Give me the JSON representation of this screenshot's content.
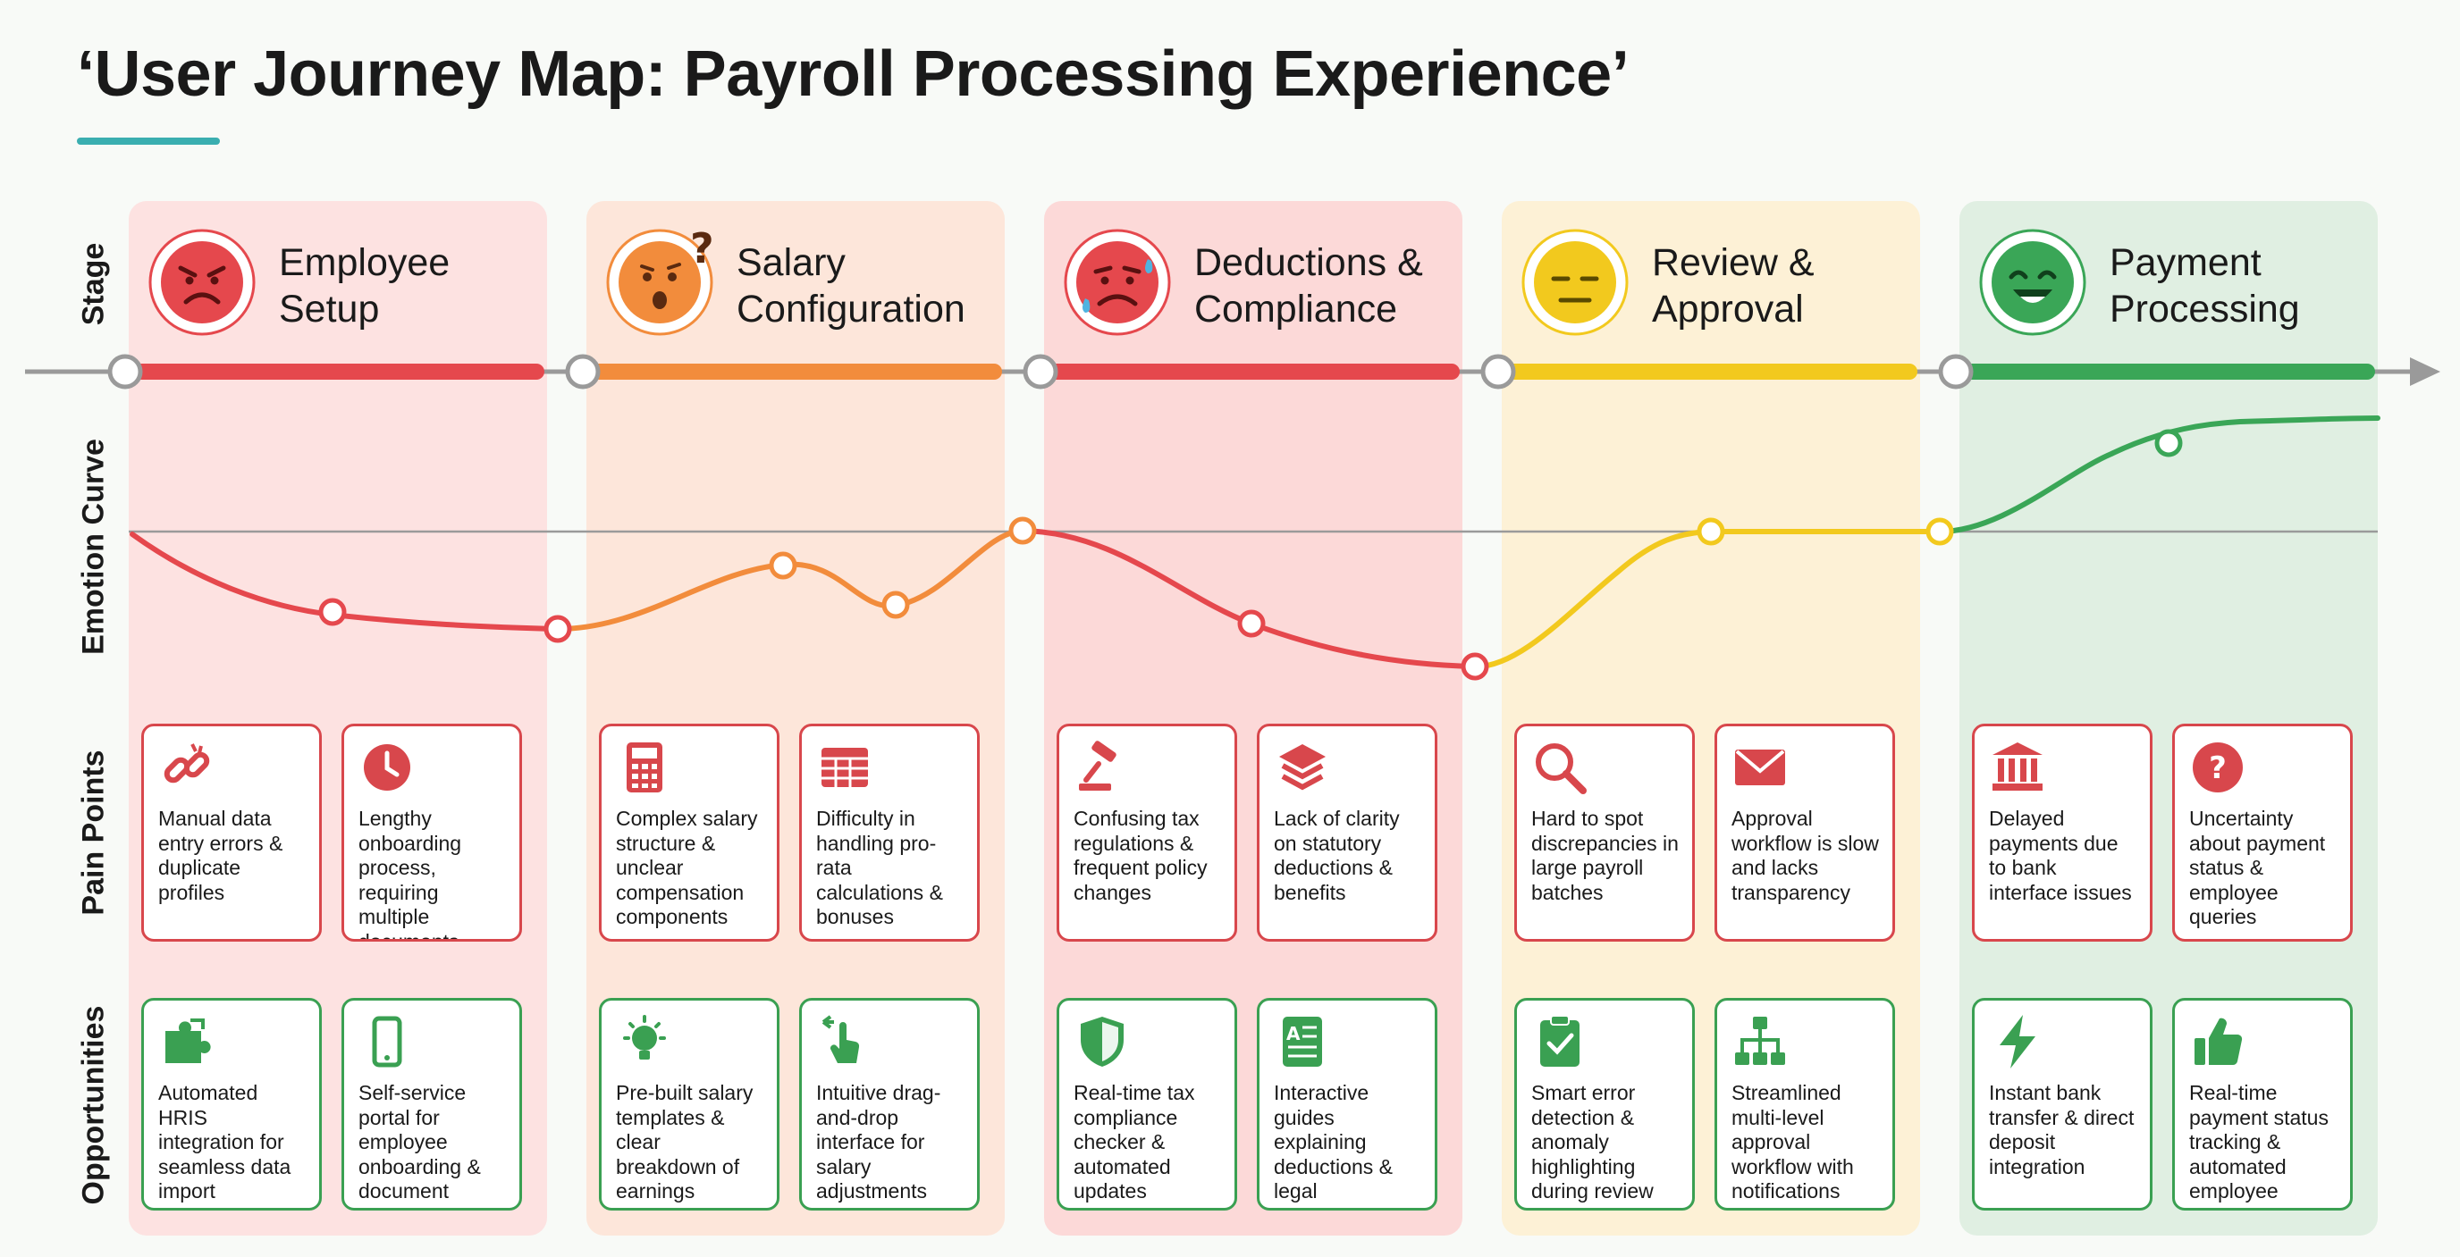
{
  "title": "‘User Journey Map: Payroll Processing Experience’",
  "row_labels": {
    "stage": "Stage",
    "emotion": "Emotion Curve",
    "pain": "Pain Points",
    "opportunities": "Opportunities"
  },
  "colors": {
    "red": "#e5484d",
    "orange": "#f28c3c",
    "yellow": "#f2c91e",
    "green": "#3aa657",
    "teal": "#3aaeb0"
  },
  "stages": [
    {
      "name_line1": "Employee",
      "name_line2": "Setup",
      "emotion": "angry",
      "color": "#e5484d",
      "bg": "#fde2e1",
      "pain_points": [
        {
          "icon": "broken-link-icon",
          "text": "Manual data entry errors & duplicate profiles"
        },
        {
          "icon": "clock-icon",
          "text": "Lengthy onboarding process, requiring multiple documents"
        }
      ],
      "opportunities": [
        {
          "icon": "puzzle-icon",
          "text": "Automated HRIS integration for seamless data import"
        },
        {
          "icon": "mobile-phone-icon",
          "text": "Self-service portal for employee onboarding & document upload"
        }
      ]
    },
    {
      "name_line1": "Salary",
      "name_line2": "Configuration",
      "emotion": "confused",
      "color": "#f28c3c",
      "bg": "#fde6da",
      "pain_points": [
        {
          "icon": "calculator-icon",
          "text": "Complex salary structure & unclear compensation components"
        },
        {
          "icon": "spreadsheet-icon",
          "text": "Difficulty in handling pro-rata calculations & bonuses"
        }
      ],
      "opportunities": [
        {
          "icon": "lightbulb-icon",
          "text": "Pre-built salary templates & clear breakdown of earnings"
        },
        {
          "icon": "drag-hand-icon",
          "text": "Intuitive drag-and-drop interface for salary adjustments"
        }
      ]
    },
    {
      "name_line1": "Deductions &",
      "name_line2": "Compliance",
      "emotion": "anxious",
      "color": "#e5484d",
      "bg": "#fcd9d8",
      "pain_points": [
        {
          "icon": "gavel-icon",
          "text": "Confusing tax regulations & frequent policy changes"
        },
        {
          "icon": "layers-icon",
          "text": "Lack of clarity on statutory deductions & benefits"
        }
      ],
      "opportunities": [
        {
          "icon": "shield-icon",
          "text": "Real-time tax compliance checker & automated updates"
        },
        {
          "icon": "guide-document-icon",
          "text": "Interactive guides explaining deductions & legal requirements"
        }
      ]
    },
    {
      "name_line1": "Review &",
      "name_line2": "Approval",
      "emotion": "neutral",
      "color": "#f2c91e",
      "bg": "#fdf1d6",
      "pain_points": [
        {
          "icon": "magnifier-icon",
          "text": "Hard to spot discrepancies in large payroll batches"
        },
        {
          "icon": "envelope-icon",
          "text": "Approval workflow is slow and lacks transparency"
        }
      ],
      "opportunities": [
        {
          "icon": "clipboard-check-icon",
          "text": "Smart error detection & anomaly highlighting during review"
        },
        {
          "icon": "org-chart-icon",
          "text": "Streamlined multi-level approval workflow with notifications"
        }
      ]
    },
    {
      "name_line1": "Payment",
      "name_line2": "Processing",
      "emotion": "happy",
      "color": "#3aa657",
      "bg": "#e0efe2",
      "pain_points": [
        {
          "icon": "bank-icon",
          "text": "Delayed payments due to bank interface issues"
        },
        {
          "icon": "question-icon",
          "text": "Uncertainty about payment status & employee queries"
        }
      ],
      "opportunities": [
        {
          "icon": "lightning-icon",
          "text": "Instant bank transfer & direct deposit integration"
        },
        {
          "icon": "thumbs-up-icon",
          "text": "Real-time payment status tracking & automated employee"
        }
      ]
    }
  ]
}
